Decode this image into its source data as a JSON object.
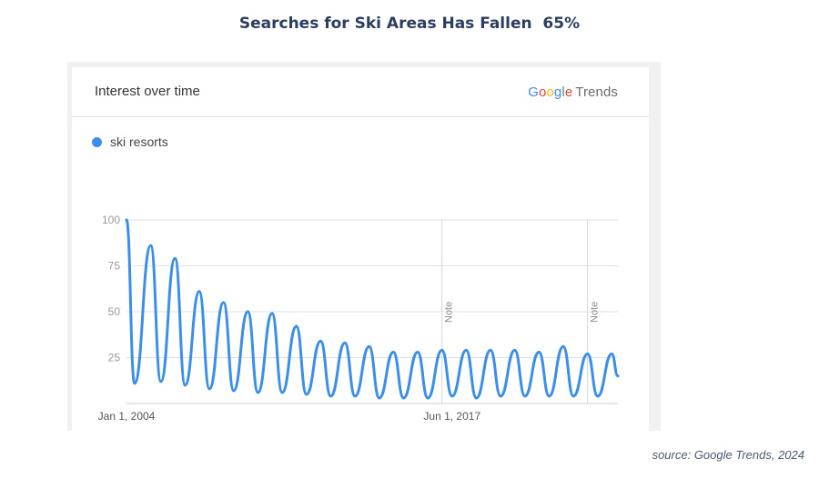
{
  "slide": {
    "title": "Searches for Ski Areas Has Fallen  65%",
    "source": "source: Google Trends, 2024"
  },
  "card": {
    "header_title": "Interest over time",
    "brand": {
      "google": "Google",
      "trends": "Trends"
    }
  },
  "colors": {
    "series": "#3b8fe8",
    "title": "#2c3e5e"
  },
  "chart_data": {
    "type": "line",
    "title": "Interest over time",
    "xlabel": "",
    "ylabel": "",
    "ylim": [
      0,
      100
    ],
    "yticks": [
      25,
      50,
      75,
      100
    ],
    "xlim": [
      "2004-01",
      "2024-04"
    ],
    "xtick_labels": [
      {
        "date": "2004-01",
        "label": "Jan 1, 2004"
      },
      {
        "date": "2017-06",
        "label": "Jun 1, 2017"
      }
    ],
    "annotations": [
      {
        "date": "2017-01",
        "label": "Note"
      },
      {
        "date": "2023-01",
        "label": "Note"
      }
    ],
    "grid": true,
    "legend": "top-left",
    "series": [
      {
        "name": "ski resorts",
        "color": "#3b8fe8",
        "peaks": [
          {
            "date": "2004-01",
            "value": 100
          },
          {
            "date": "2005-01",
            "value": 86
          },
          {
            "date": "2006-01",
            "value": 79
          },
          {
            "date": "2007-01",
            "value": 61
          },
          {
            "date": "2008-01",
            "value": 55
          },
          {
            "date": "2009-01",
            "value": 50
          },
          {
            "date": "2010-01",
            "value": 49
          },
          {
            "date": "2011-01",
            "value": 42
          },
          {
            "date": "2012-01",
            "value": 34
          },
          {
            "date": "2013-01",
            "value": 33
          },
          {
            "date": "2014-01",
            "value": 31
          },
          {
            "date": "2015-01",
            "value": 28
          },
          {
            "date": "2016-01",
            "value": 28
          },
          {
            "date": "2017-01",
            "value": 29
          },
          {
            "date": "2018-01",
            "value": 29
          },
          {
            "date": "2019-01",
            "value": 29
          },
          {
            "date": "2020-01",
            "value": 29
          },
          {
            "date": "2021-01",
            "value": 28
          },
          {
            "date": "2022-01",
            "value": 31
          },
          {
            "date": "2023-01",
            "value": 27
          },
          {
            "date": "2024-01",
            "value": 27
          }
        ],
        "troughs": [
          {
            "date": "2004-05",
            "value": 11
          },
          {
            "date": "2005-06",
            "value": 12
          },
          {
            "date": "2006-06",
            "value": 10
          },
          {
            "date": "2007-06",
            "value": 8
          },
          {
            "date": "2008-06",
            "value": 7
          },
          {
            "date": "2009-06",
            "value": 6
          },
          {
            "date": "2010-06",
            "value": 6
          },
          {
            "date": "2011-06",
            "value": 5
          },
          {
            "date": "2012-06",
            "value": 4
          },
          {
            "date": "2013-06",
            "value": 4
          },
          {
            "date": "2014-06",
            "value": 3
          },
          {
            "date": "2015-06",
            "value": 3
          },
          {
            "date": "2016-06",
            "value": 3
          },
          {
            "date": "2017-06",
            "value": 4
          },
          {
            "date": "2018-06",
            "value": 3
          },
          {
            "date": "2019-06",
            "value": 4
          },
          {
            "date": "2020-06",
            "value": 4
          },
          {
            "date": "2021-06",
            "value": 4
          },
          {
            "date": "2022-06",
            "value": 4
          },
          {
            "date": "2023-06",
            "value": 4
          },
          {
            "date": "2024-04",
            "value": 15
          }
        ]
      }
    ]
  }
}
